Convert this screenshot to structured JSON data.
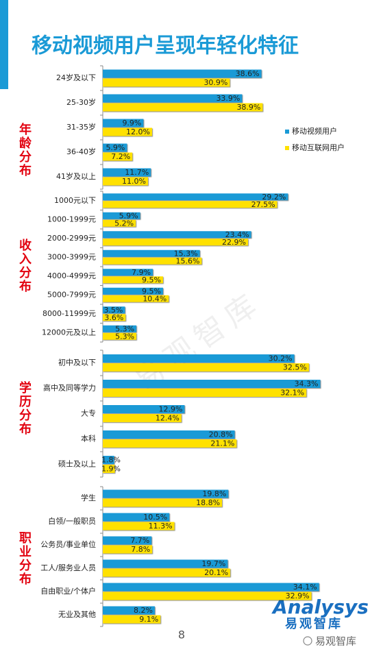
{
  "page_title": "移动视频用户呈现年轻化特征",
  "chart_data": [
    {
      "type": "bar",
      "orientation": "horizontal",
      "title": "年龄分布",
      "xlim": [
        0,
        50
      ],
      "categories": [
        "24岁及以下",
        "25-30岁",
        "31-35岁",
        "36-40岁",
        "41岁及以上"
      ],
      "legend": "right",
      "series": [
        {
          "name": "移动视频用户",
          "color": "#1a9ad6",
          "values": [
            38.6,
            33.9,
            9.9,
            5.9,
            11.7
          ],
          "value_labels": [
            "38.6%",
            "33.9%",
            "9.9%",
            "5.9%",
            "11.7%"
          ]
        },
        {
          "name": "移动互联网用户",
          "color": "#ffe100",
          "values": [
            30.9,
            38.9,
            12.0,
            7.2,
            11.0
          ],
          "value_labels": [
            "30.9%",
            "38.9%",
            "12.0%",
            "7.2%",
            "11.0%"
          ]
        }
      ]
    },
    {
      "type": "bar",
      "orientation": "horizontal",
      "title": "收入分布",
      "xlim": [
        0,
        35
      ],
      "categories": [
        "1000元以下",
        "1000-1999元",
        "2000-2999元",
        "3000-3999元",
        "4000-4999元",
        "5000-7999元",
        "8000-11999元",
        "12000元及以上"
      ],
      "series": [
        {
          "color": "#1a9ad6",
          "values": [
            29.2,
            5.9,
            23.4,
            15.3,
            7.9,
            9.5,
            3.5,
            5.3
          ],
          "value_labels": [
            "29.2%",
            "5.9%",
            "23.4%",
            "15.3%",
            "7.9%",
            "9.5%",
            "3.5%",
            "5.3%"
          ]
        },
        {
          "color": "#ffe100",
          "values": [
            27.5,
            5.2,
            22.9,
            15.6,
            9.5,
            10.4,
            3.6,
            5.3
          ],
          "value_labels": [
            "27.5%",
            "5.2%",
            "22.9%",
            "15.6%",
            "9.5%",
            "10.4%",
            "3.6%",
            "5.3%"
          ]
        }
      ]
    },
    {
      "type": "bar",
      "orientation": "horizontal",
      "title": "学历分布",
      "xlim": [
        0,
        35
      ],
      "categories": [
        "初中及以下",
        "高中及同等学力",
        "大专",
        "本科",
        "硕士及以上"
      ],
      "series": [
        {
          "color": "#1a9ad6",
          "values": [
            30.2,
            34.3,
            12.9,
            20.8,
            1.8
          ],
          "value_labels": [
            "30.2%",
            "34.3%",
            "12.9%",
            "20.8%",
            "1.8%"
          ]
        },
        {
          "color": "#ffe100",
          "values": [
            32.5,
            32.1,
            12.4,
            21.1,
            1.9
          ],
          "value_labels": [
            "32.5%",
            "32.1%",
            "12.4%",
            "21.1%",
            "1.9%"
          ]
        }
      ]
    },
    {
      "type": "bar",
      "orientation": "horizontal",
      "title": "职业分布",
      "xlim": [
        0,
        35
      ],
      "categories": [
        "学生",
        "白领/一般职员",
        "公务员/事业单位",
        "工人/服务业人员",
        "自由职业/个体户",
        "无业及其他"
      ],
      "series": [
        {
          "color": "#1a9ad6",
          "values": [
            19.8,
            10.5,
            7.7,
            19.7,
            34.1,
            8.2
          ],
          "value_labels": [
            "19.8%",
            "10.5%",
            "7.7%",
            "19.7%",
            "34.1%",
            "8.2%"
          ]
        },
        {
          "color": "#ffe100",
          "values": [
            18.8,
            11.3,
            7.8,
            20.1,
            32.9,
            9.1
          ],
          "value_labels": [
            "18.8%",
            "11.3%",
            "7.8%",
            "20.1%",
            "32.9%",
            "9.1%"
          ]
        }
      ]
    }
  ],
  "footer": {
    "page_number": "8",
    "brand_en": "Analysys",
    "brand_cn": "易观智库",
    "wechat": "易观智库",
    "watermark": "易观智库"
  }
}
